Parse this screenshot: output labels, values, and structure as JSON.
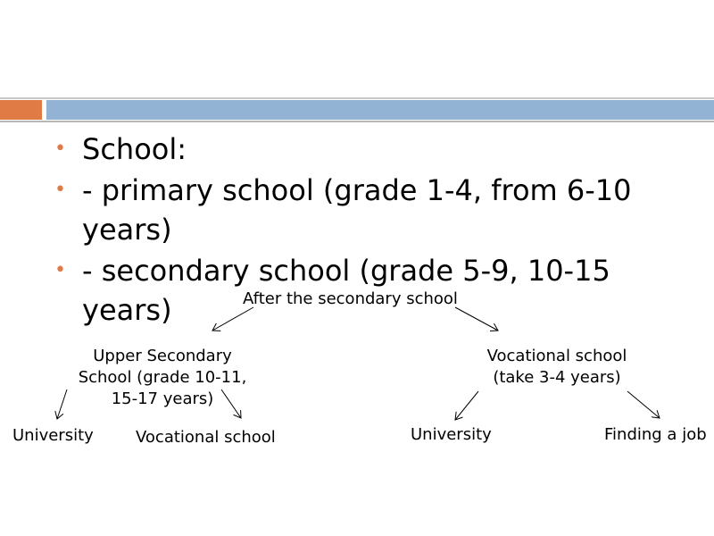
{
  "accent_colors": {
    "orange": "#e07b46",
    "blue": "#93b3d4"
  },
  "bullets": [
    {
      "text": "School:"
    },
    {
      "text": "- primary school (grade 1-4, from 6-10 years)"
    },
    {
      "text": "- secondary school (grade 5-9, 10-15 years)"
    }
  ],
  "diagram": {
    "root": "After the secondary school",
    "upper_secondary": [
      "Upper Secondary",
      "School (grade 10-11,",
      "15-17 years)"
    ],
    "vocational_left": [
      "Vocational school",
      "(take 3-4 years)"
    ],
    "leaf_university_1": "University",
    "leaf_vocational": "Vocational school",
    "leaf_university_2": "University",
    "leaf_job": "Finding a job"
  }
}
